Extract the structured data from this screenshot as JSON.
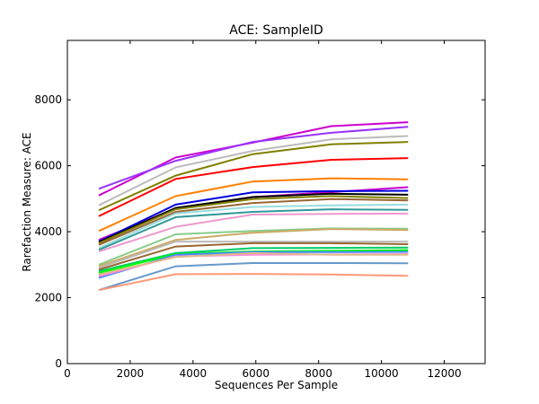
{
  "chart_data": {
    "type": "line",
    "title": "ACE: SampleID",
    "xlabel": "Sequences Per Sample",
    "ylabel": "Rarefaction Measure: ACE",
    "xlim": [
      0,
      13300
    ],
    "ylim": [
      0,
      9800
    ],
    "xticks": [
      0,
      2000,
      4000,
      6000,
      8000,
      10000,
      12000
    ],
    "yticks": [
      0,
      2000,
      4000,
      6000,
      8000
    ],
    "xtick_labels": [
      "0",
      "2000",
      "4000",
      "6000",
      "8000",
      "10000",
      "12000"
    ],
    "ytick_labels": [
      "0",
      "2000",
      "4000",
      "6000",
      "8000"
    ],
    "grid": false,
    "x": [
      1000,
      3450,
      5900,
      8400,
      10850
    ],
    "series": [
      {
        "color": "#cc00cc",
        "values": [
          5100,
          6250,
          6700,
          7200,
          7320
        ]
      },
      {
        "color": "#9933ff",
        "values": [
          5300,
          6150,
          6720,
          7000,
          7180
        ]
      },
      {
        "color": "#bbbbbb",
        "values": [
          4800,
          5950,
          6450,
          6800,
          6900
        ]
      },
      {
        "color": "#808000",
        "values": [
          4650,
          5700,
          6350,
          6650,
          6720
        ]
      },
      {
        "color": "#ff0000",
        "values": [
          4470,
          5600,
          5960,
          6180,
          6230
        ]
      },
      {
        "color": "#ff7f00",
        "values": [
          4020,
          5080,
          5520,
          5620,
          5590
        ]
      },
      {
        "color": "#cc00cc",
        "values": [
          3750,
          4700,
          5050,
          5200,
          5350
        ]
      },
      {
        "color": "#0000dd",
        "values": [
          3700,
          4820,
          5190,
          5230,
          5240
        ]
      },
      {
        "color": "#000000",
        "values": [
          3680,
          4720,
          5050,
          5150,
          5120
        ]
      },
      {
        "color": "#808000",
        "values": [
          3650,
          4680,
          4990,
          5080,
          5020
        ]
      },
      {
        "color": "#996633",
        "values": [
          3600,
          4600,
          4870,
          4990,
          4950
        ]
      },
      {
        "color": "#99dddd",
        "values": [
          3500,
          4550,
          4750,
          4800,
          4820
        ]
      },
      {
        "color": "#339999",
        "values": [
          3450,
          4440,
          4600,
          4680,
          4660
        ]
      },
      {
        "color": "#ee99cc",
        "values": [
          3400,
          4150,
          4520,
          4540,
          4550
        ]
      },
      {
        "color": "#88cc88",
        "values": [
          3000,
          3920,
          4020,
          4100,
          4090
        ]
      },
      {
        "color": "#ccaa66",
        "values": [
          2950,
          3750,
          3970,
          4080,
          4050
        ]
      },
      {
        "color": "#bbbbbb",
        "values": [
          2900,
          3700,
          3700,
          3700,
          3700
        ]
      },
      {
        "color": "#996633",
        "values": [
          2850,
          3550,
          3650,
          3650,
          3620
        ]
      },
      {
        "color": "#00cc66",
        "values": [
          2800,
          3350,
          3500,
          3510,
          3520
        ]
      },
      {
        "color": "#00ff00",
        "values": [
          2750,
          3320,
          3400,
          3420,
          3440
        ]
      },
      {
        "color": "#4488ff",
        "values": [
          2600,
          3300,
          3380,
          3380,
          3390
        ]
      },
      {
        "color": "#ff88dd",
        "values": [
          2650,
          3250,
          3300,
          3310,
          3320
        ]
      },
      {
        "color": "#ddbb88",
        "values": [
          2700,
          3230,
          3350,
          3300,
          3300
        ]
      },
      {
        "color": "#6699cc",
        "values": [
          2230,
          2950,
          3050,
          3050,
          3040
        ]
      },
      {
        "color": "#ff9977",
        "values": [
          2230,
          2710,
          2720,
          2700,
          2660
        ]
      }
    ]
  }
}
